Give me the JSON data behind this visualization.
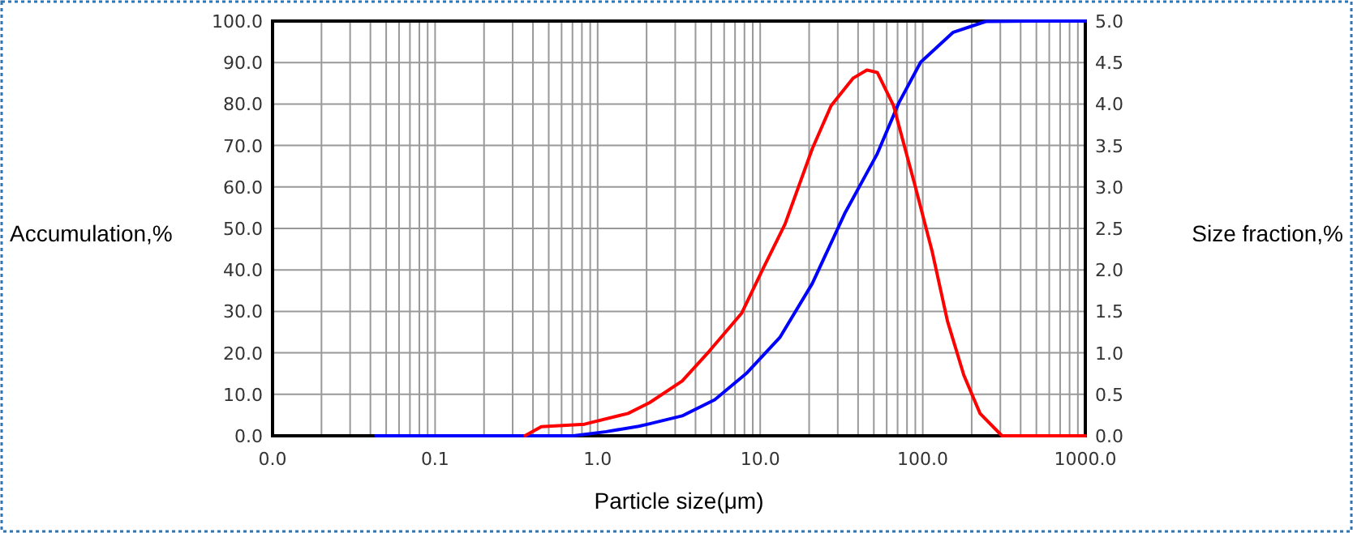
{
  "chart_data": {
    "type": "line",
    "xlabel": "Particle size(μm)",
    "ylabel": "Accumulation,%",
    "y2label": "Size fraction,%",
    "log": "x",
    "grid": true,
    "marker": "none",
    "line_style": "solid",
    "xlim": [
      0.01,
      1000
    ],
    "xticks": [
      {
        "value": 0.01,
        "label": "0.0"
      },
      {
        "value": 0.02,
        "label": null
      },
      {
        "value": 0.03,
        "label": null
      },
      {
        "value": 0.04,
        "label": null
      },
      {
        "value": 0.05,
        "label": null
      },
      {
        "value": 0.06,
        "label": null
      },
      {
        "value": 0.07,
        "label": null
      },
      {
        "value": 0.08,
        "label": null
      },
      {
        "value": 0.09,
        "label": null
      },
      {
        "value": 0.1,
        "label": "0.1"
      },
      {
        "value": 0.2,
        "label": null
      },
      {
        "value": 0.3,
        "label": null
      },
      {
        "value": 0.4,
        "label": null
      },
      {
        "value": 0.5,
        "label": null
      },
      {
        "value": 0.6,
        "label": null
      },
      {
        "value": 0.7,
        "label": null
      },
      {
        "value": 0.8,
        "label": null
      },
      {
        "value": 0.9,
        "label": null
      },
      {
        "value": 1,
        "label": "1.0"
      },
      {
        "value": 2,
        "label": null
      },
      {
        "value": 3,
        "label": null
      },
      {
        "value": 4,
        "label": null
      },
      {
        "value": 5,
        "label": null
      },
      {
        "value": 6,
        "label": null
      },
      {
        "value": 7,
        "label": null
      },
      {
        "value": 8,
        "label": null
      },
      {
        "value": 9,
        "label": null
      },
      {
        "value": 10,
        "label": "10.0"
      },
      {
        "value": 20,
        "label": null
      },
      {
        "value": 30,
        "label": null
      },
      {
        "value": 40,
        "label": null
      },
      {
        "value": 50,
        "label": null
      },
      {
        "value": 60,
        "label": null
      },
      {
        "value": 70,
        "label": null
      },
      {
        "value": 80,
        "label": null
      },
      {
        "value": 90,
        "label": null
      },
      {
        "value": 100,
        "label": "100.0"
      },
      {
        "value": 200,
        "label": null
      },
      {
        "value": 300,
        "label": null
      },
      {
        "value": 400,
        "label": null
      },
      {
        "value": 500,
        "label": null
      },
      {
        "value": 600,
        "label": null
      },
      {
        "value": 700,
        "label": null
      },
      {
        "value": 800,
        "label": null
      },
      {
        "value": 900,
        "label": null
      },
      {
        "value": 1000,
        "label": "1000.0"
      }
    ],
    "ylim": [
      0,
      100
    ],
    "yticks": [
      {
        "value": 0,
        "label": "0.0"
      },
      {
        "value": 10,
        "label": "10.0"
      },
      {
        "value": 20,
        "label": "20.0"
      },
      {
        "value": 30,
        "label": "30.0"
      },
      {
        "value": 40,
        "label": "40.0"
      },
      {
        "value": 50,
        "label": "50.0"
      },
      {
        "value": 60,
        "label": "60.0"
      },
      {
        "value": 70,
        "label": "70.0"
      },
      {
        "value": 80,
        "label": "80.0"
      },
      {
        "value": 90,
        "label": "90.0"
      },
      {
        "value": 100,
        "label": "100.0"
      }
    ],
    "y2lim": [
      0,
      5
    ],
    "y2ticks": [
      {
        "value": 0,
        "label": "0.0"
      },
      {
        "value": 0.5,
        "label": "0.5"
      },
      {
        "value": 1,
        "label": "1.0"
      },
      {
        "value": 1.5,
        "label": "1.5"
      },
      {
        "value": 2,
        "label": "2.0"
      },
      {
        "value": 2.5,
        "label": "2.5"
      },
      {
        "value": 3,
        "label": "3.0"
      },
      {
        "value": 3.5,
        "label": "3.5"
      },
      {
        "value": 4,
        "label": "4.0"
      },
      {
        "value": 4.5,
        "label": "4.5"
      },
      {
        "value": 5,
        "label": "5.0"
      }
    ],
    "series": [
      {
        "color": "#0000ff",
        "axis": "y",
        "x": [
          0.043,
          0.2,
          0.71,
          1.13,
          1.79,
          2.09,
          3.31,
          5.25,
          8.3,
          13.2,
          20.9,
          33.1,
          52.5,
          71.3,
          97.1,
          154,
          244,
          500,
          1000
        ],
        "values": [
          0,
          0,
          0,
          1.0,
          2.3,
          2.9,
          4.8,
          8.7,
          15.2,
          23.7,
          36.7,
          53.6,
          68,
          80.3,
          90.1,
          97.3,
          99.9,
          100,
          100
        ]
      },
      {
        "color": "#ff0000",
        "axis": "y2",
        "x": [
          0.357,
          0.45,
          0.83,
          1.54,
          2.09,
          3.31,
          4.86,
          7.7,
          10.5,
          14.2,
          20.9,
          27.3,
          37.2,
          45.3,
          52.5,
          66.1,
          89.8,
          114,
          142,
          179,
          225,
          307,
          500,
          1000
        ],
        "values": [
          0,
          0.11,
          0.14,
          0.27,
          0.4,
          0.66,
          1.02,
          1.48,
          2.03,
          2.55,
          3.46,
          3.98,
          4.31,
          4.41,
          4.38,
          3.98,
          3.01,
          2.23,
          1.38,
          0.73,
          0.27,
          0,
          0,
          0
        ]
      }
    ]
  }
}
